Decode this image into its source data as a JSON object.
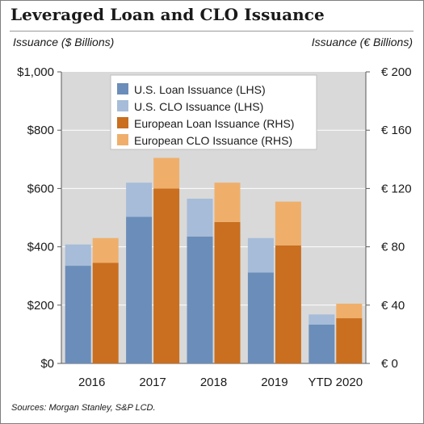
{
  "colors": {
    "us_loan": "#6b8db9",
    "us_clo": "#a6bcd8",
    "eu_loan": "#c96f1f",
    "eu_clo": "#efaf6b",
    "plot_background": "#d9d9d9",
    "grid": "#ffffff",
    "legend_background": "#ffffff"
  },
  "chart_data": {
    "type": "bar",
    "title": "Leveraged Loan and CLO Issuance",
    "ylabel_left": "Issuance ($ Billions)",
    "ylabel_right": "Issuance (€ Billions)",
    "categories": [
      "2016",
      "2017",
      "2018",
      "2019",
      "YTD 2020"
    ],
    "left_axis": {
      "ylim": [
        0,
        1000
      ],
      "ticks": [
        0,
        200,
        400,
        600,
        800,
        1000
      ],
      "tick_labels": [
        "$0",
        "$200",
        "$400",
        "$600",
        "$800",
        "$1,000"
      ]
    },
    "right_axis": {
      "ylim": [
        0,
        200
      ],
      "ticks": [
        0,
        40,
        80,
        120,
        160,
        200
      ],
      "tick_labels": [
        "€ 0",
        "€ 40",
        "€ 80",
        "€ 120",
        "€ 160",
        "€ 200"
      ]
    },
    "legend": {
      "placement": "top-center",
      "entries": [
        "U.S. Loan Issuance (LHS)",
        "U.S. CLO Issuance (LHS)",
        "European Loan Issuance (RHS)",
        "European CLO Issuance (RHS)"
      ]
    },
    "series": [
      {
        "name": "U.S. Loan Issuance (LHS)",
        "axis": "left",
        "stack": "us",
        "values": [
          335,
          503,
          435,
          312,
          133
        ]
      },
      {
        "name": "U.S. CLO Issuance (LHS)",
        "axis": "left",
        "stack": "us",
        "values": [
          73,
          117,
          130,
          118,
          35
        ]
      },
      {
        "name": "European Loan Issuance (RHS)",
        "axis": "right",
        "stack": "eu",
        "values": [
          69,
          120,
          97,
          81,
          31
        ]
      },
      {
        "name": "European CLO Issuance (RHS)",
        "axis": "right",
        "stack": "eu",
        "values": [
          17,
          21,
          27,
          30,
          10
        ]
      }
    ],
    "grid": true
  },
  "footer": {
    "source": "Sources: Morgan Stanley, S&P LCD."
  }
}
